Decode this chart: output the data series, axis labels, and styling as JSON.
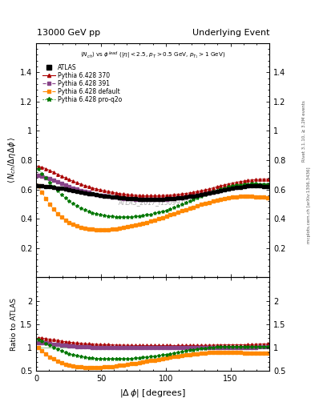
{
  "title_left": "13000 GeV pp",
  "title_right": "Underlying Event",
  "annotation": "ATLAS_2017_I1509919",
  "rivet_text": "Rivet 3.1.10, ≥ 3.2M events",
  "mcplots_text": "mcplots.cern.ch [arXiv:1306.3436]",
  "ylabel_main": "$\\langle N_{ch}/\\Delta\\eta\\,\\Delta\\phi\\rangle$",
  "ylabel_ratio": "Ratio to ATLAS",
  "ylim_main": [
    0.0,
    1.6
  ],
  "ylim_ratio": [
    0.5,
    2.5
  ],
  "yticks_main": [
    0.2,
    0.4,
    0.6,
    0.8,
    1.0,
    1.2,
    1.4
  ],
  "yticks_ratio": [
    0.5,
    1.0,
    1.5,
    2.0
  ],
  "xlim": [
    0,
    180
  ],
  "xticks": [
    0,
    50,
    100,
    150
  ],
  "series": {
    "ATLAS": {
      "color": "black",
      "marker": "s",
      "markersize": 2.5,
      "linestyle": "none",
      "label": "ATLAS",
      "x": [
        1.5,
        4.5,
        7.5,
        10.5,
        13.5,
        16.5,
        19.5,
        22.5,
        25.5,
        28.5,
        31.5,
        34.5,
        37.5,
        40.5,
        43.5,
        46.5,
        49.5,
        52.5,
        55.5,
        58.5,
        61.5,
        64.5,
        67.5,
        70.5,
        73.5,
        76.5,
        79.5,
        82.5,
        85.5,
        88.5,
        91.5,
        94.5,
        97.5,
        100.5,
        103.5,
        106.5,
        109.5,
        112.5,
        115.5,
        118.5,
        121.5,
        124.5,
        127.5,
        130.5,
        133.5,
        136.5,
        139.5,
        142.5,
        145.5,
        148.5,
        151.5,
        154.5,
        157.5,
        160.5,
        163.5,
        166.5,
        169.5,
        172.5,
        175.5,
        178.5
      ],
      "y": [
        0.625,
        0.624,
        0.622,
        0.619,
        0.615,
        0.611,
        0.607,
        0.602,
        0.597,
        0.592,
        0.587,
        0.582,
        0.578,
        0.573,
        0.568,
        0.564,
        0.56,
        0.556,
        0.552,
        0.549,
        0.546,
        0.543,
        0.541,
        0.539,
        0.537,
        0.536,
        0.535,
        0.534,
        0.533,
        0.533,
        0.533,
        0.534,
        0.535,
        0.536,
        0.538,
        0.54,
        0.542,
        0.545,
        0.548,
        0.552,
        0.556,
        0.56,
        0.565,
        0.57,
        0.575,
        0.58,
        0.586,
        0.592,
        0.597,
        0.603,
        0.608,
        0.613,
        0.617,
        0.621,
        0.623,
        0.624,
        0.624,
        0.623,
        0.622,
        0.62
      ]
    },
    "Pythia370": {
      "color": "#aa0000",
      "marker": "^",
      "markersize": 2.5,
      "linestyle": "-",
      "linewidth": 0.6,
      "label": "Pythia 6.428 370",
      "x": [
        1.5,
        4.5,
        7.5,
        10.5,
        13.5,
        16.5,
        19.5,
        22.5,
        25.5,
        28.5,
        31.5,
        34.5,
        37.5,
        40.5,
        43.5,
        46.5,
        49.5,
        52.5,
        55.5,
        58.5,
        61.5,
        64.5,
        67.5,
        70.5,
        73.5,
        76.5,
        79.5,
        82.5,
        85.5,
        88.5,
        91.5,
        94.5,
        97.5,
        100.5,
        103.5,
        106.5,
        109.5,
        112.5,
        115.5,
        118.5,
        121.5,
        124.5,
        127.5,
        130.5,
        133.5,
        136.5,
        139.5,
        142.5,
        145.5,
        148.5,
        151.5,
        154.5,
        157.5,
        160.5,
        163.5,
        166.5,
        169.5,
        172.5,
        175.5,
        178.5
      ],
      "y": [
        0.758,
        0.752,
        0.742,
        0.73,
        0.717,
        0.704,
        0.691,
        0.679,
        0.667,
        0.656,
        0.645,
        0.636,
        0.627,
        0.619,
        0.611,
        0.604,
        0.597,
        0.591,
        0.586,
        0.581,
        0.576,
        0.572,
        0.569,
        0.566,
        0.563,
        0.561,
        0.559,
        0.558,
        0.557,
        0.557,
        0.557,
        0.558,
        0.559,
        0.56,
        0.562,
        0.564,
        0.567,
        0.57,
        0.573,
        0.577,
        0.581,
        0.586,
        0.592,
        0.598,
        0.604,
        0.611,
        0.618,
        0.625,
        0.632,
        0.638,
        0.644,
        0.649,
        0.654,
        0.658,
        0.662,
        0.665,
        0.667,
        0.669,
        0.67,
        0.67
      ]
    },
    "Pythia391": {
      "color": "#884488",
      "marker": "s",
      "markersize": 2.5,
      "linestyle": "--",
      "linewidth": 0.6,
      "label": "Pythia 6.428 391",
      "x": [
        1.5,
        4.5,
        7.5,
        10.5,
        13.5,
        16.5,
        19.5,
        22.5,
        25.5,
        28.5,
        31.5,
        34.5,
        37.5,
        40.5,
        43.5,
        46.5,
        49.5,
        52.5,
        55.5,
        58.5,
        61.5,
        64.5,
        67.5,
        70.5,
        73.5,
        76.5,
        79.5,
        82.5,
        85.5,
        88.5,
        91.5,
        94.5,
        97.5,
        100.5,
        103.5,
        106.5,
        109.5,
        112.5,
        115.5,
        118.5,
        121.5,
        124.5,
        127.5,
        130.5,
        133.5,
        136.5,
        139.5,
        142.5,
        145.5,
        148.5,
        151.5,
        154.5,
        157.5,
        160.5,
        163.5,
        166.5,
        169.5,
        172.5,
        175.5,
        178.5
      ],
      "y": [
        0.695,
        0.69,
        0.682,
        0.672,
        0.661,
        0.65,
        0.639,
        0.629,
        0.619,
        0.61,
        0.601,
        0.593,
        0.586,
        0.579,
        0.573,
        0.567,
        0.562,
        0.557,
        0.553,
        0.549,
        0.546,
        0.543,
        0.54,
        0.538,
        0.536,
        0.535,
        0.533,
        0.532,
        0.532,
        0.532,
        0.532,
        0.533,
        0.534,
        0.535,
        0.537,
        0.539,
        0.542,
        0.545,
        0.548,
        0.552,
        0.556,
        0.561,
        0.566,
        0.571,
        0.577,
        0.583,
        0.589,
        0.595,
        0.601,
        0.607,
        0.612,
        0.617,
        0.621,
        0.624,
        0.627,
        0.629,
        0.63,
        0.631,
        0.631,
        0.63
      ]
    },
    "PythiaDefault": {
      "color": "#ff8800",
      "marker": "s",
      "markersize": 2.5,
      "linestyle": "-.",
      "linewidth": 0.6,
      "label": "Pythia 6.428 default",
      "x": [
        1.5,
        4.5,
        7.5,
        10.5,
        13.5,
        16.5,
        19.5,
        22.5,
        25.5,
        28.5,
        31.5,
        34.5,
        37.5,
        40.5,
        43.5,
        46.5,
        49.5,
        52.5,
        55.5,
        58.5,
        61.5,
        64.5,
        67.5,
        70.5,
        73.5,
        76.5,
        79.5,
        82.5,
        85.5,
        88.5,
        91.5,
        94.5,
        97.5,
        100.5,
        103.5,
        106.5,
        109.5,
        112.5,
        115.5,
        118.5,
        121.5,
        124.5,
        127.5,
        130.5,
        133.5,
        136.5,
        139.5,
        142.5,
        145.5,
        148.5,
        151.5,
        154.5,
        157.5,
        160.5,
        163.5,
        166.5,
        169.5,
        172.5,
        175.5,
        178.5
      ],
      "y": [
        0.625,
        0.58,
        0.537,
        0.498,
        0.464,
        0.435,
        0.411,
        0.391,
        0.375,
        0.362,
        0.351,
        0.343,
        0.337,
        0.332,
        0.329,
        0.327,
        0.326,
        0.326,
        0.327,
        0.329,
        0.332,
        0.336,
        0.34,
        0.345,
        0.35,
        0.356,
        0.362,
        0.369,
        0.376,
        0.384,
        0.392,
        0.4,
        0.408,
        0.417,
        0.426,
        0.435,
        0.444,
        0.453,
        0.462,
        0.471,
        0.48,
        0.489,
        0.497,
        0.505,
        0.513,
        0.52,
        0.527,
        0.533,
        0.538,
        0.543,
        0.547,
        0.55,
        0.552,
        0.553,
        0.553,
        0.553,
        0.551,
        0.549,
        0.547,
        0.544
      ]
    },
    "PythiaProQ2o": {
      "color": "#007700",
      "marker": "*",
      "markersize": 3.0,
      "linestyle": ":",
      "linewidth": 0.6,
      "label": "Pythia 6.428 pro-q2o",
      "x": [
        1.5,
        4.5,
        7.5,
        10.5,
        13.5,
        16.5,
        19.5,
        22.5,
        25.5,
        28.5,
        31.5,
        34.5,
        37.5,
        40.5,
        43.5,
        46.5,
        49.5,
        52.5,
        55.5,
        58.5,
        61.5,
        64.5,
        67.5,
        70.5,
        73.5,
        76.5,
        79.5,
        82.5,
        85.5,
        88.5,
        91.5,
        94.5,
        97.5,
        100.5,
        103.5,
        106.5,
        109.5,
        112.5,
        115.5,
        118.5,
        121.5,
        124.5,
        127.5,
        130.5,
        133.5,
        136.5,
        139.5,
        142.5,
        145.5,
        148.5,
        151.5,
        154.5,
        157.5,
        160.5,
        163.5,
        166.5,
        169.5,
        172.5,
        175.5,
        178.5
      ],
      "y": [
        0.738,
        0.71,
        0.68,
        0.649,
        0.619,
        0.591,
        0.565,
        0.542,
        0.521,
        0.503,
        0.487,
        0.473,
        0.461,
        0.45,
        0.441,
        0.434,
        0.428,
        0.423,
        0.419,
        0.416,
        0.414,
        0.413,
        0.413,
        0.413,
        0.414,
        0.416,
        0.419,
        0.422,
        0.426,
        0.431,
        0.437,
        0.443,
        0.45,
        0.458,
        0.467,
        0.476,
        0.486,
        0.497,
        0.508,
        0.52,
        0.531,
        0.543,
        0.554,
        0.565,
        0.575,
        0.585,
        0.594,
        0.603,
        0.611,
        0.618,
        0.624,
        0.629,
        0.633,
        0.636,
        0.638,
        0.639,
        0.639,
        0.638,
        0.637,
        0.635
      ]
    }
  },
  "background_color": "#ffffff"
}
